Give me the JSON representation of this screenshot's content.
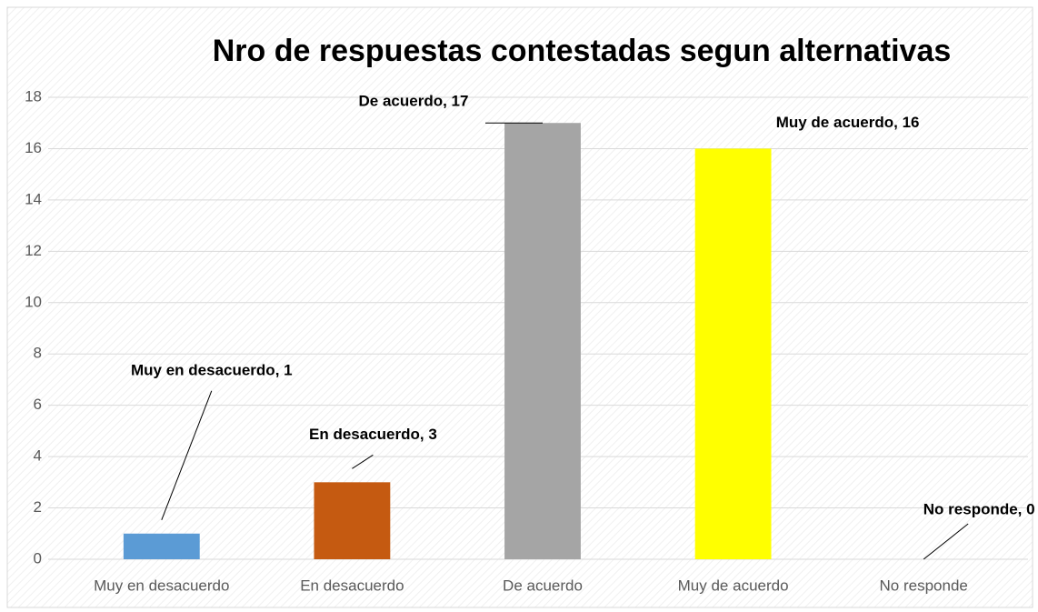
{
  "chart_data": {
    "type": "bar",
    "title": "Nro de respuestas contestadas segun alternativas",
    "categories": [
      "Muy en desacuerdo",
      "En desacuerdo",
      "De acuerdo",
      "Muy de acuerdo",
      "No responde"
    ],
    "values": [
      1,
      3,
      17,
      16,
      0
    ],
    "value_labels": [
      "Muy en desacuerdo, 1",
      "En desacuerdo, 3",
      "De acuerdo, 17",
      "Muy de acuerdo, 16",
      "No responde, 0"
    ],
    "colors": [
      "#5b9bd5",
      "#c55a11",
      "#a5a5a5",
      "#ffff00",
      "#4472c4"
    ],
    "ylim": [
      0,
      18
    ],
    "yticks": [
      0,
      2,
      4,
      6,
      8,
      10,
      12,
      14,
      16,
      18
    ],
    "grid": true
  }
}
